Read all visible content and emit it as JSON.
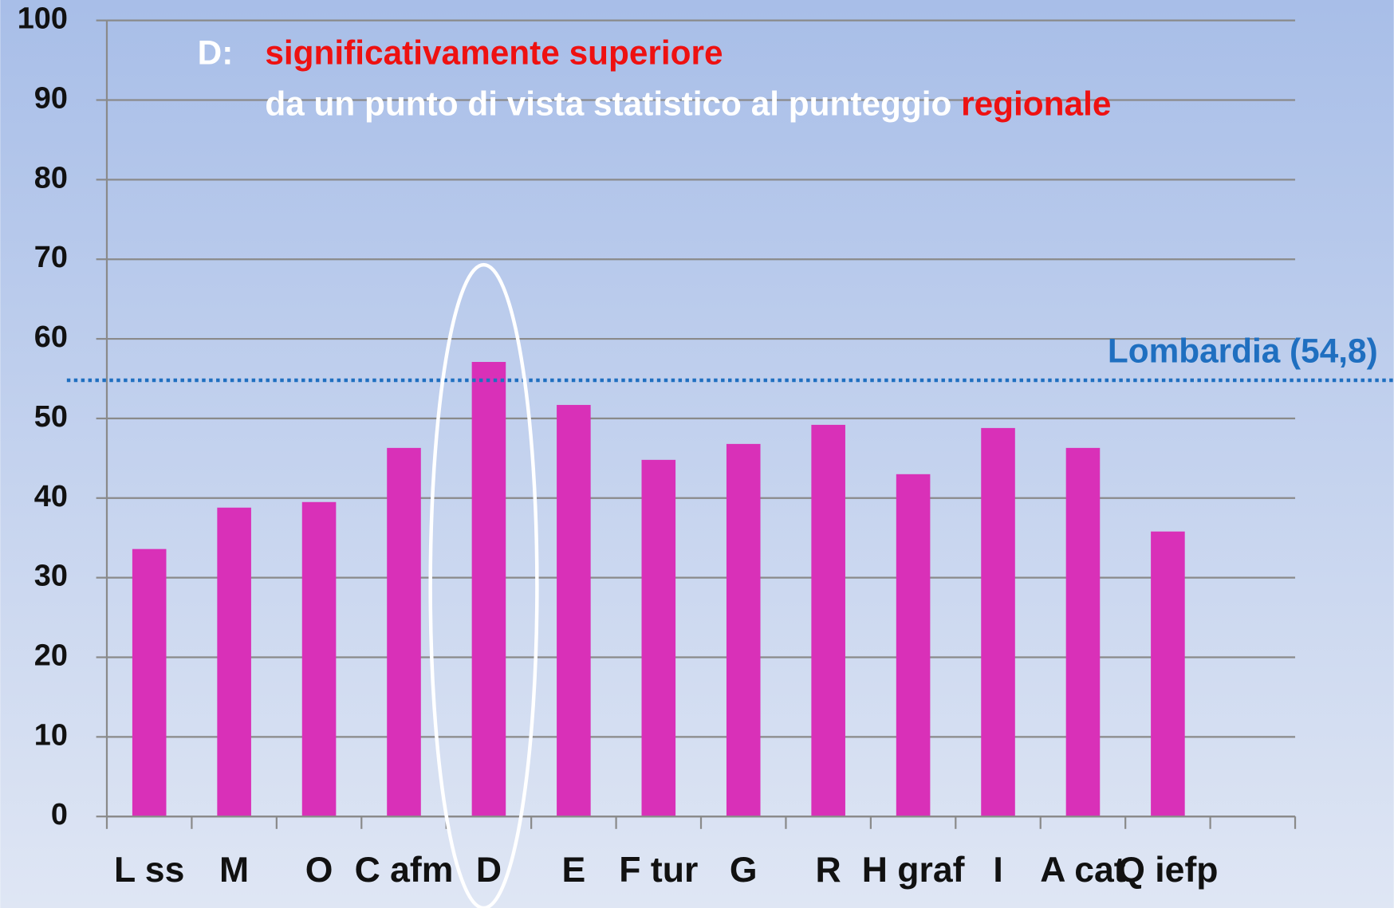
{
  "chart_data": {
    "type": "bar",
    "categories": [
      "L ss",
      "M",
      "O",
      "C afm",
      "D",
      "E",
      "F tur",
      "G",
      "R",
      "H graf",
      "I",
      "A cat",
      "Q iefp",
      null
    ],
    "values": [
      33.6,
      38.8,
      39.5,
      46.3,
      57.1,
      51.7,
      44.8,
      46.8,
      49.2,
      43.0,
      48.8,
      46.3,
      35.8,
      null
    ],
    "color": "#d930b8",
    "ylim": [
      0,
      100
    ],
    "yticks": [
      0,
      10,
      20,
      30,
      40,
      50,
      60,
      70,
      80,
      90,
      100
    ],
    "grid": true,
    "reference_line": {
      "value": 54.8,
      "label": "Lombardia  (54,8)",
      "color": "#1f6fc0"
    },
    "annotation": {
      "prefix": "D:",
      "line1": "significativamente superiore",
      "line2": "da un punto di vista statistico al punteggio ",
      "line2_highlight": "regionale"
    }
  }
}
